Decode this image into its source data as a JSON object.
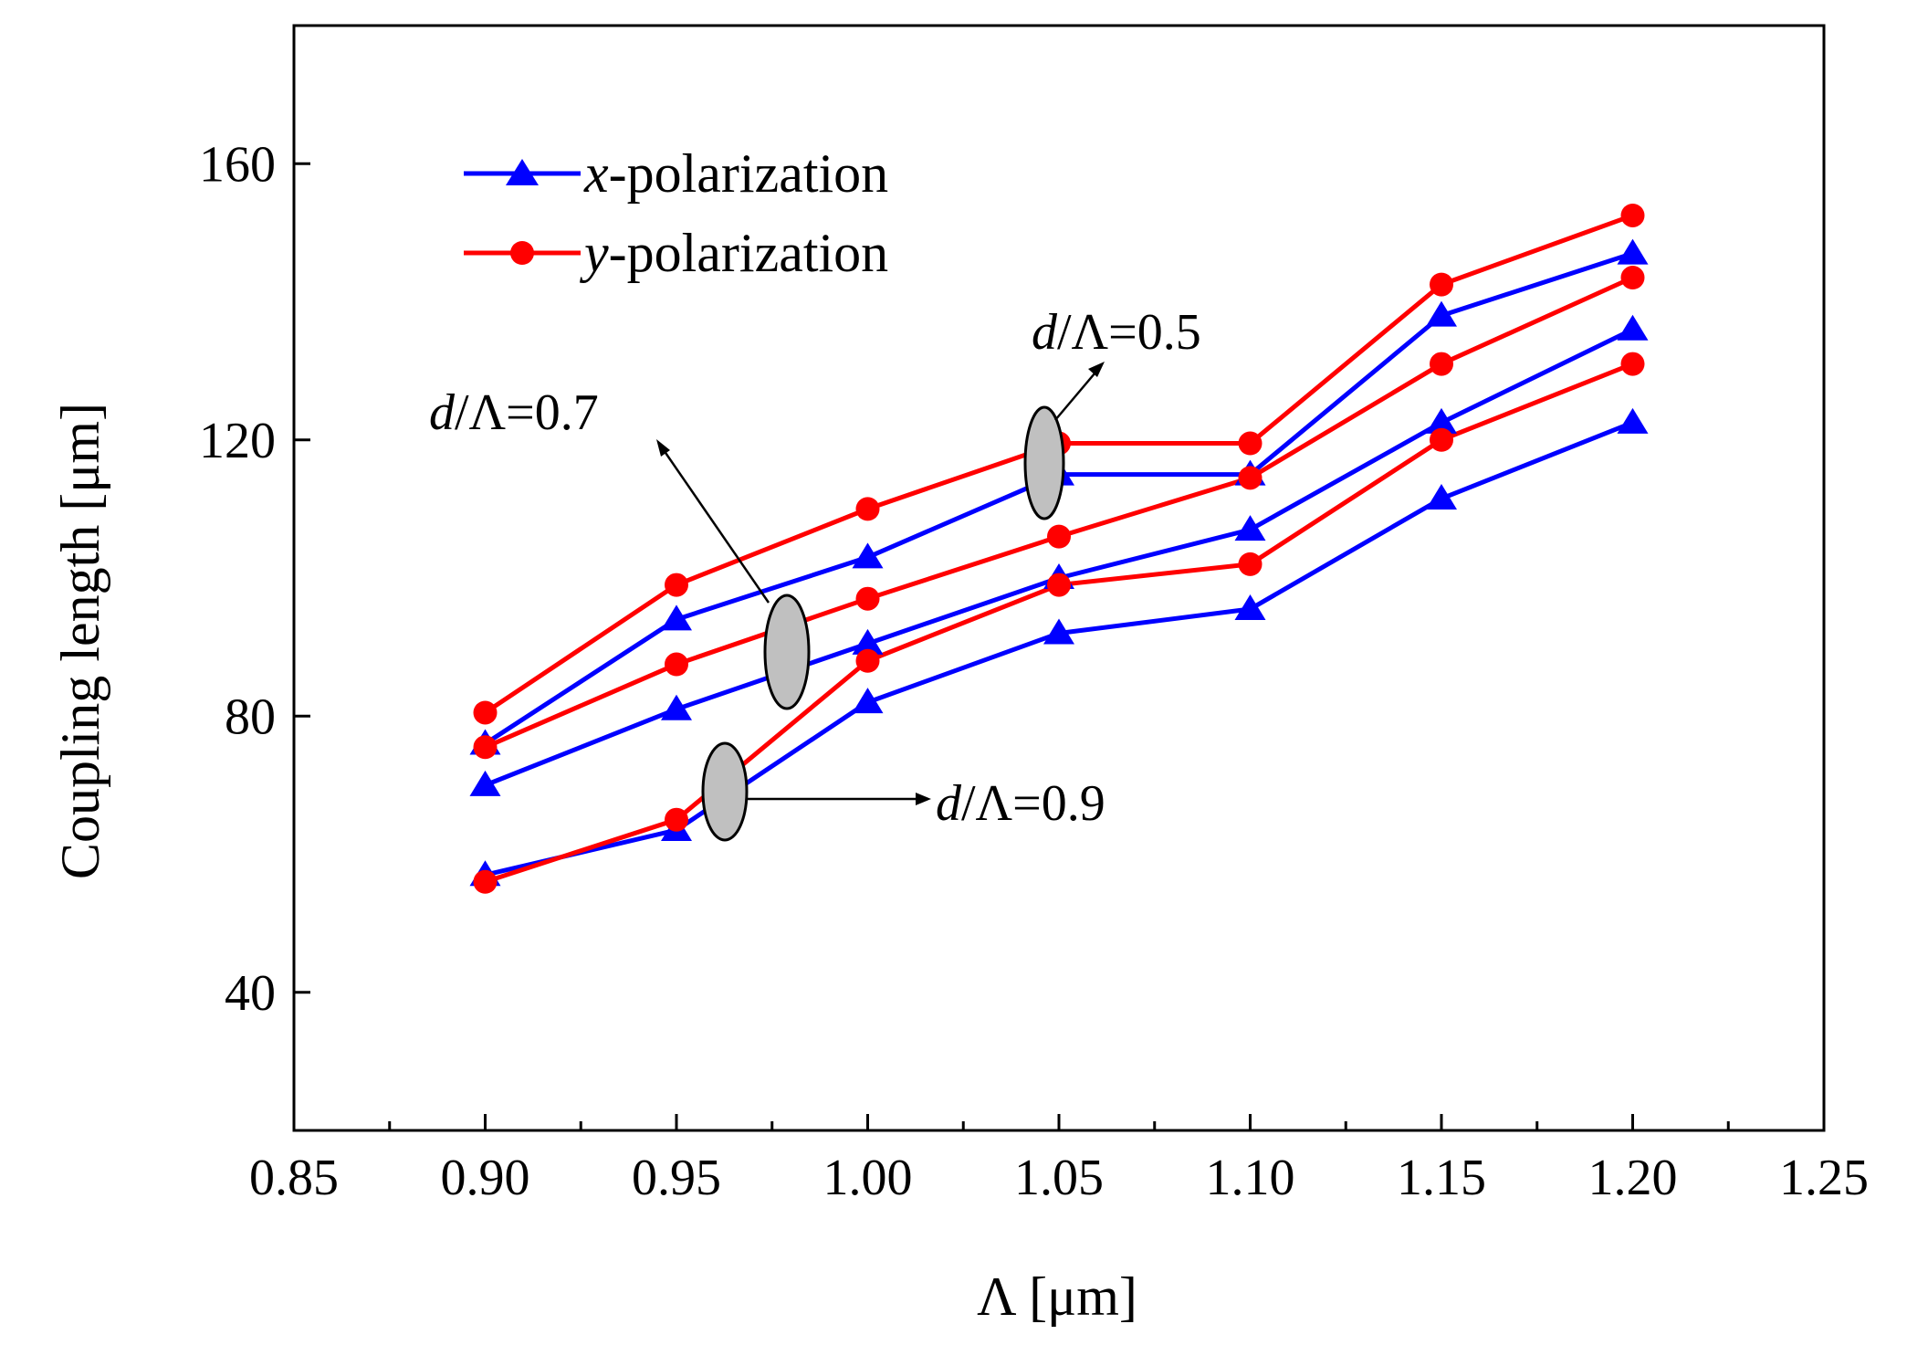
{
  "chart_data": {
    "type": "line",
    "xlabel": "Λ [μm]",
    "ylabel": "Coupling length [μm]",
    "xlim": [
      0.85,
      1.25
    ],
    "ylim": [
      20,
      180
    ],
    "xticks": [
      "0.85",
      "0.90",
      "0.95",
      "1.00",
      "1.05",
      "1.10",
      "1.15",
      "1.20",
      "1.25"
    ],
    "xtick_values": [
      0.85,
      0.9,
      0.95,
      1.0,
      1.05,
      1.1,
      1.15,
      1.2,
      1.25
    ],
    "yticks": [
      "40",
      "80",
      "120",
      "160"
    ],
    "ytick_values": [
      40,
      80,
      120,
      160
    ],
    "grid": false,
    "legend_position": "top-left",
    "legend": [
      {
        "italic": "x",
        "text": "-polarization",
        "color": "#0000ff",
        "marker": "triangle"
      },
      {
        "italic": "y",
        "text": "-polarization",
        "color": "#ff0000",
        "marker": "circle"
      }
    ],
    "x": [
      0.9,
      0.95,
      1.0,
      1.05,
      1.1,
      1.15,
      1.2
    ],
    "series": [
      {
        "polarization": "x",
        "group": "d/Λ=0.5",
        "color": "#0000ff",
        "marker": "triangle",
        "values": [
          76,
          94,
          103,
          115,
          115,
          138,
          147
        ]
      },
      {
        "polarization": "y",
        "group": "d/Λ=0.5",
        "color": "#ff0000",
        "marker": "circle",
        "values": [
          80.5,
          99,
          110,
          119.5,
          119.5,
          142.5,
          152.5
        ]
      },
      {
        "polarization": "x",
        "group": "d/Λ=0.7",
        "color": "#0000ff",
        "marker": "triangle",
        "values": [
          70,
          81,
          90.5,
          100,
          107,
          122.5,
          136
        ]
      },
      {
        "polarization": "y",
        "group": "d/Λ=0.7",
        "color": "#ff0000",
        "marker": "circle",
        "values": [
          75.5,
          87.5,
          97,
          106,
          114.5,
          131,
          143.5
        ]
      },
      {
        "polarization": "x",
        "group": "d/Λ=0.9",
        "color": "#0000ff",
        "marker": "triangle",
        "values": [
          57,
          63.5,
          82,
          92,
          95.5,
          111.5,
          122.5
        ]
      },
      {
        "polarization": "y",
        "group": "d/Λ=0.9",
        "color": "#ff0000",
        "marker": "circle",
        "values": [
          56,
          65,
          88,
          99,
          102,
          120,
          131
        ]
      }
    ],
    "annotations": [
      {
        "italic": "d",
        "text": "/Λ=0.5"
      },
      {
        "italic": "d",
        "text": "/Λ=0.7"
      },
      {
        "italic": "d",
        "text": "/Λ=0.9"
      }
    ]
  }
}
